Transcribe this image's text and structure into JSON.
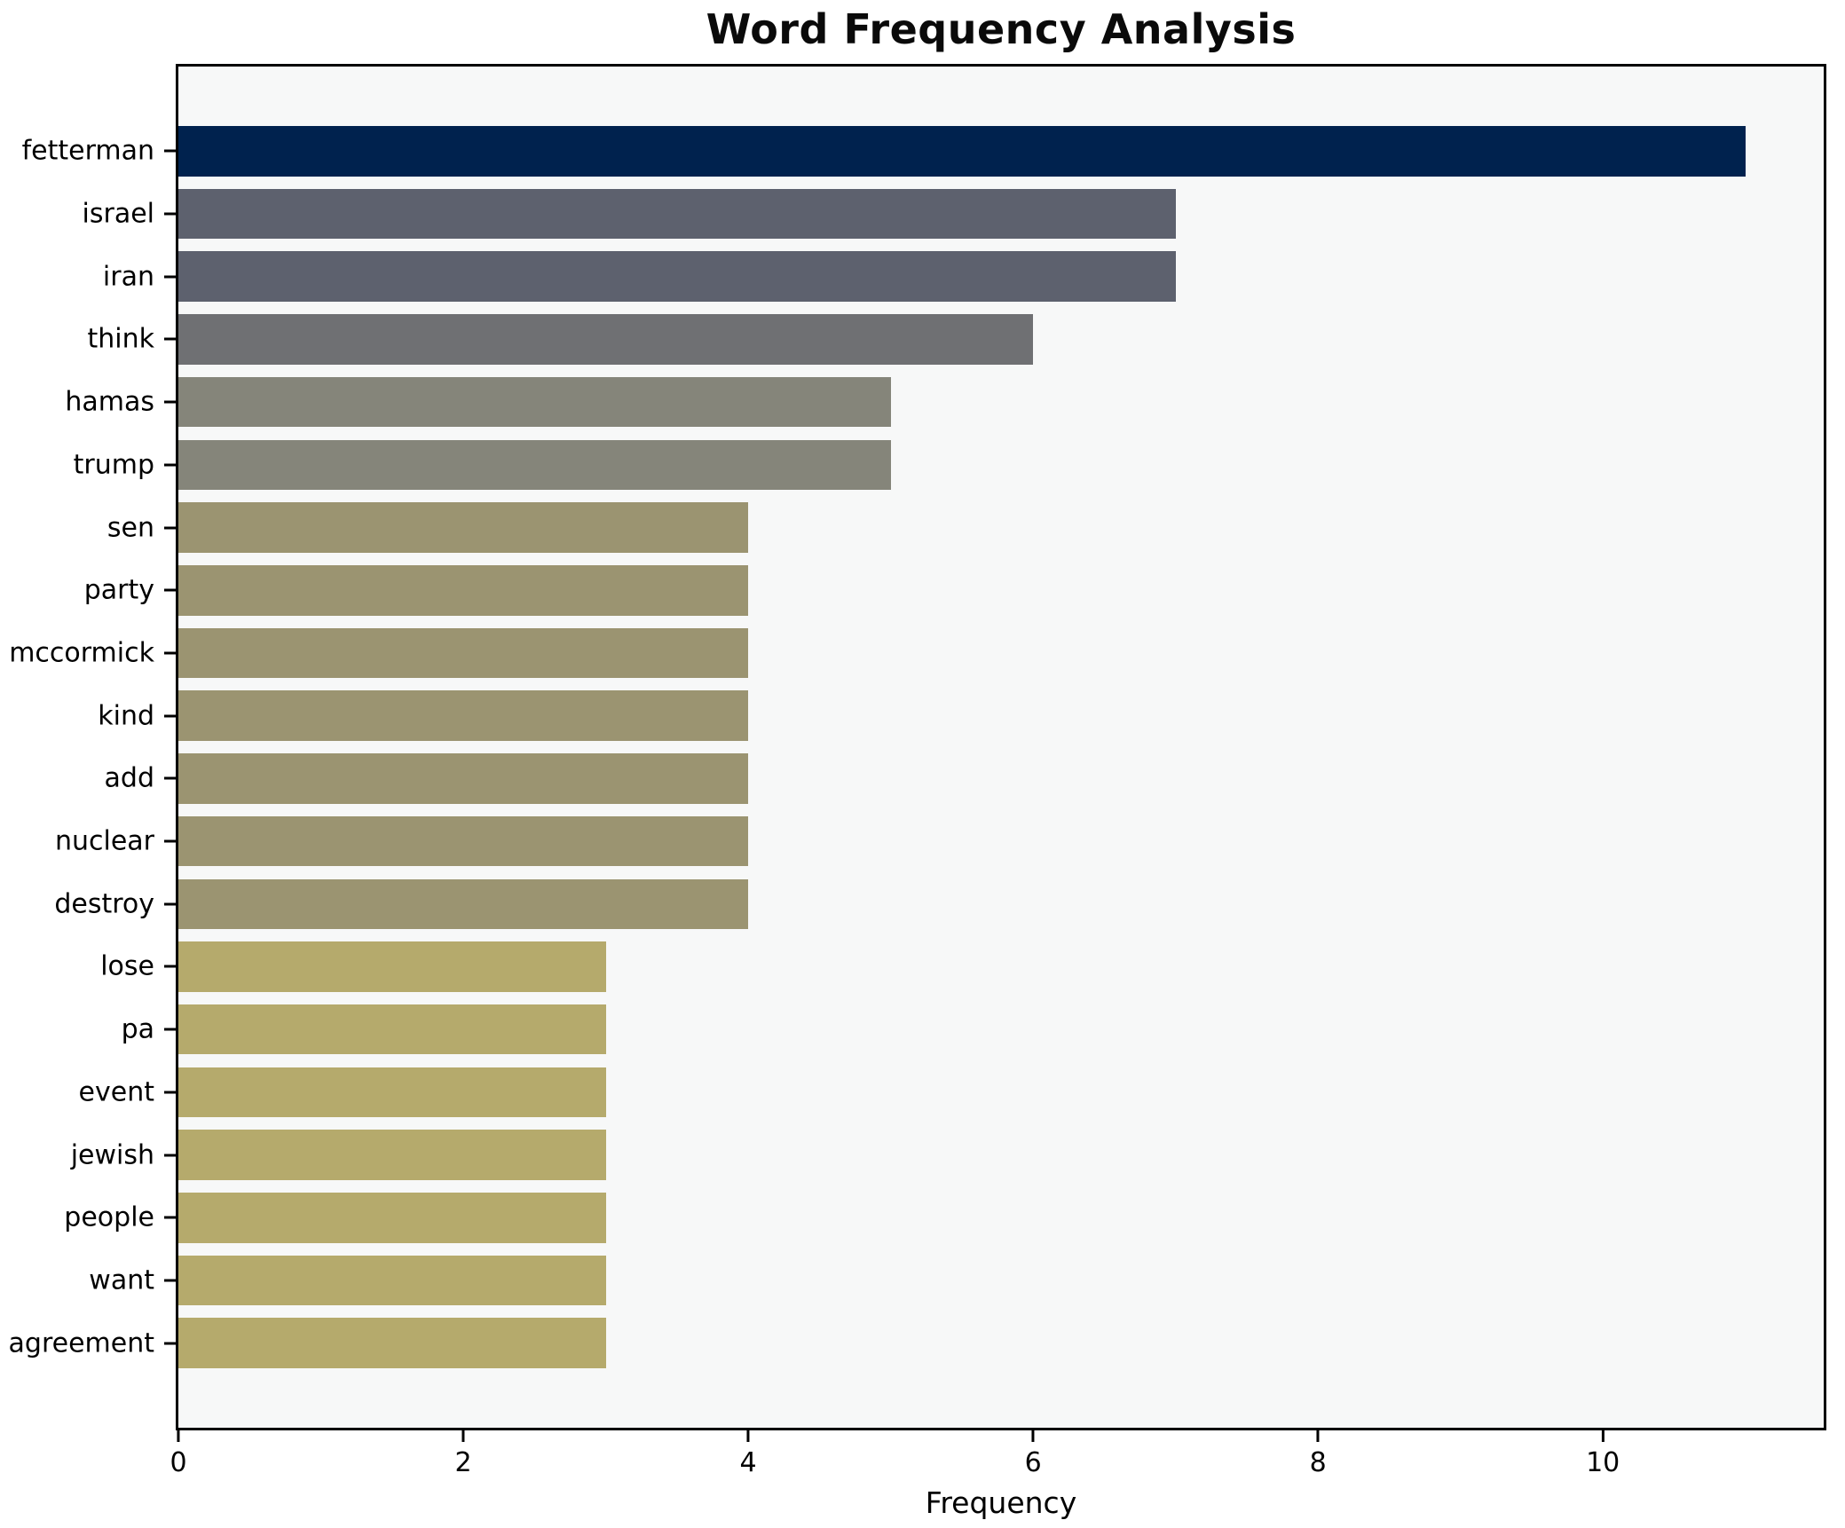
{
  "chart": {
    "title": "Word Frequency Analysis",
    "xlabel": "Frequency"
  },
  "chart_data": {
    "type": "bar",
    "orientation": "horizontal",
    "title": "Word Frequency Analysis",
    "xlabel": "Frequency",
    "ylabel": "",
    "categories": [
      "fetterman",
      "israel",
      "iran",
      "think",
      "hamas",
      "trump",
      "sen",
      "party",
      "mccormick",
      "kind",
      "add",
      "nuclear",
      "destroy",
      "lose",
      "pa",
      "event",
      "jewish",
      "people",
      "want",
      "agreement"
    ],
    "values": [
      11,
      7,
      7,
      6,
      5,
      5,
      4,
      4,
      4,
      4,
      4,
      4,
      4,
      3,
      3,
      3,
      3,
      3,
      3,
      3
    ],
    "bar_colors": [
      "#00224e",
      "#5d616e",
      "#5d616e",
      "#6f7073",
      "#85857a",
      "#85857a",
      "#9b9471",
      "#9b9471",
      "#9b9471",
      "#9b9471",
      "#9b9471",
      "#9b9471",
      "#9b9471",
      "#b5aa6c",
      "#b5aa6c",
      "#b5aa6c",
      "#b5aa6c",
      "#b5aa6c",
      "#b5aa6c",
      "#b5aa6c"
    ],
    "xlim": [
      0,
      11.55
    ],
    "xticks": [
      0,
      2,
      4,
      6,
      8,
      10
    ],
    "grid": false,
    "legend": null,
    "plot_bg": "#f7f8f8",
    "fig_bg": "#ffffff",
    "bar_relative_height": 0.8
  }
}
